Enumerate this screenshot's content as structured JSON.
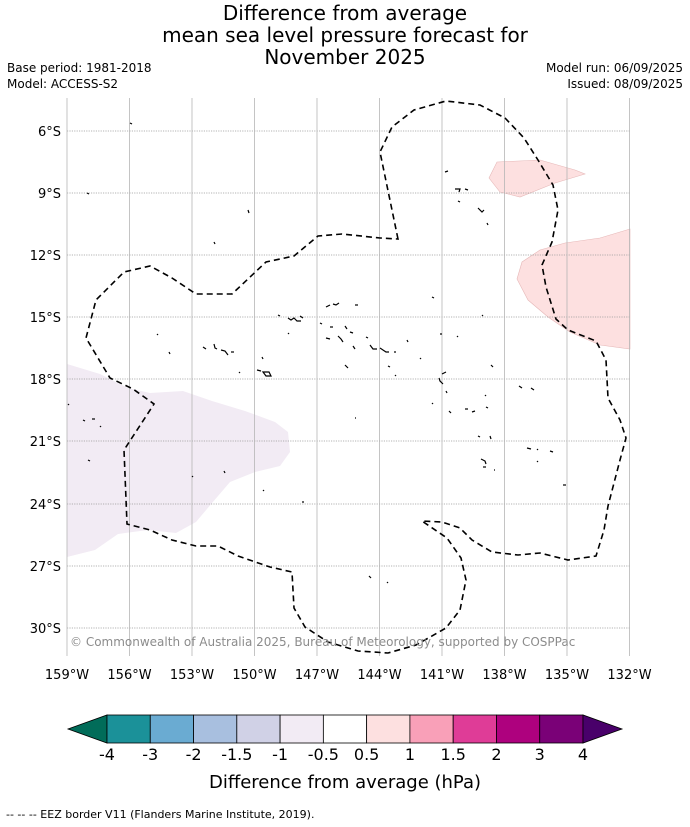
{
  "title": {
    "line1": "Difference from average",
    "line2": "mean sea level pressure forecast for",
    "line3": "November 2025"
  },
  "meta": {
    "base_period": "Base period: 1981-2018",
    "model": "Model: ACCESS-S2",
    "model_run": "Model run: 06/09/2025",
    "issued": "Issued: 08/09/2025"
  },
  "map": {
    "lat_labels": [
      "6°S",
      "9°S",
      "12°S",
      "15°S",
      "18°S",
      "21°S",
      "24°S",
      "27°S",
      "30°S"
    ],
    "lon_labels": [
      "159°W",
      "156°W",
      "153°W",
      "150°W",
      "147°W",
      "144°W",
      "141°W",
      "138°W",
      "135°W",
      "132°W"
    ],
    "copyright": "© Commonwealth of Australia 2025, Bureau of Meteorology, supported by COSPPac"
  },
  "colorbar": {
    "tick_labels": [
      "-4",
      "-3",
      "-2",
      "-1.5",
      "-1",
      "-0.5",
      "0.5",
      "1",
      "1.5",
      "2",
      "3",
      "4"
    ],
    "colors": [
      "#1b9199",
      "#6aabd2",
      "#a8bfdf",
      "#d0d1e6",
      "#f2ebf4",
      "#ffffff",
      "#fde0e0",
      "#f9a0b8",
      "#df3c97",
      "#ae017e",
      "#7a0177"
    ],
    "under_color": "#016c59",
    "over_color": "#49006a",
    "label": "Difference from average (hPa)"
  },
  "footer": {
    "eez_legend": "-- -- -- EEZ border V11 (Flanders Marine Institute, 2019)."
  }
}
